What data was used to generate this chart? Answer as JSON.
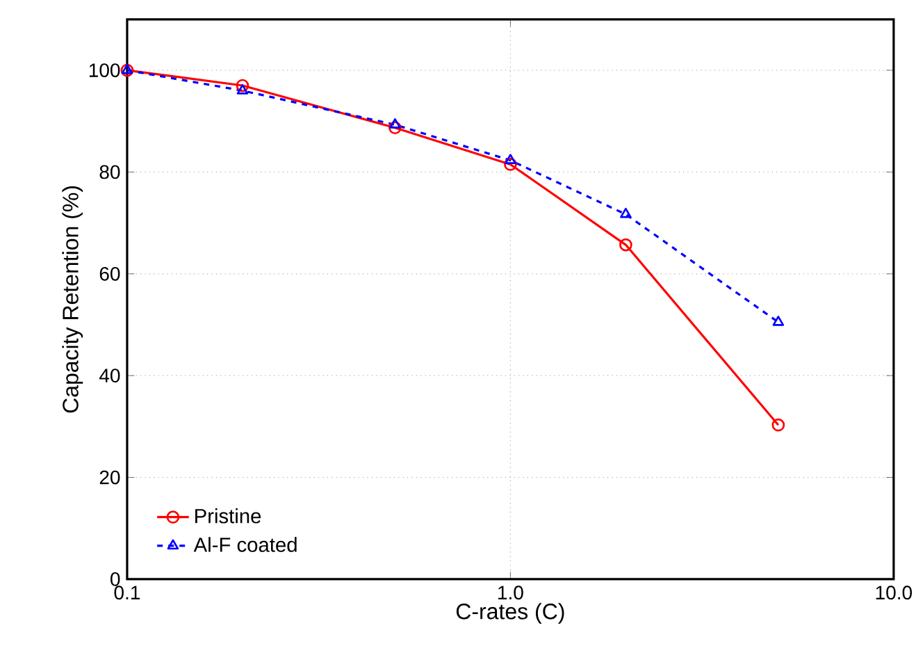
{
  "chart_data": {
    "type": "line",
    "xlabel": "C-rates (C)",
    "ylabel": "Capacity Retention (%)",
    "x": [
      0.1,
      0.2,
      0.5,
      1,
      2,
      5
    ],
    "series": [
      {
        "name": "Pristine",
        "color": "#ff0000",
        "values": [
          100,
          97,
          88.7,
          81.5,
          65.7,
          30.3
        ],
        "marker": "circle",
        "line_style": "solid"
      },
      {
        "name": "Al-F coated",
        "color": "#0000ff",
        "values": [
          100,
          96,
          89.3,
          82.3,
          71.7,
          50.5
        ],
        "marker": "triangle",
        "line_style": "dashed"
      }
    ],
    "log": "x",
    "xlim": [
      0.1,
      10
    ],
    "xticks": [
      0.1,
      {
        "value": 1,
        "label": "1.0"
      },
      {
        "value": 10,
        "label": "10.0"
      }
    ],
    "ylim": [
      0,
      110
    ],
    "yticks": [
      0,
      20,
      40,
      60,
      80,
      100
    ],
    "grid": true,
    "legend": "bottom left"
  }
}
